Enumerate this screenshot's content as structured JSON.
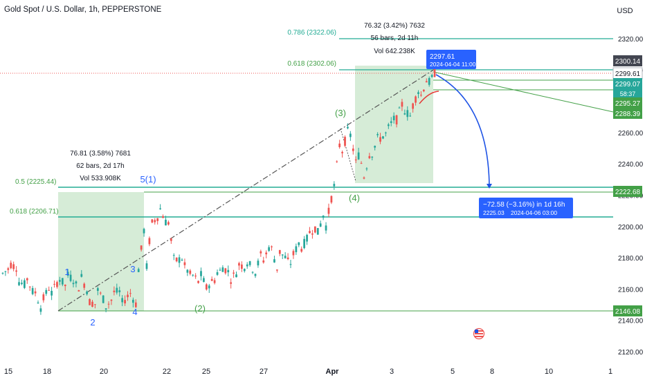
{
  "header": {
    "title": "Gold Spot / U.S. Dollar, 1h, PEPPERSTONE",
    "currency": "USD"
  },
  "chart_data": {
    "type": "candlestick",
    "symbol": "Gold Spot / U.S. Dollar",
    "interval": "1h",
    "source": "PEPPERSTONE",
    "currency": "USD",
    "ylim": [
      2110,
      2330
    ],
    "y_ticks": [
      2120,
      2140,
      2160,
      2180,
      2200,
      2220,
      2240,
      2260,
      2280,
      2300,
      2320
    ],
    "y_tick_labels": [
      "2120.00",
      "2140.00",
      "2160.00",
      "2180.00",
      "2200.00",
      "2220.00",
      "2240.00",
      "2260.00",
      "",
      "2300.00",
      "2320.00"
    ],
    "x_tick_labels": [
      "15",
      "18",
      "20",
      "22",
      "25",
      "27",
      "Apr",
      "3",
      "5",
      "8",
      "10",
      "1"
    ],
    "colors": {
      "up": "#26a69a",
      "down": "#ef5350",
      "fib": "#22ab94",
      "fib_text": "#43a047",
      "wave_blue": "#2962ff",
      "wave_green": "#43a047",
      "projection": "#1e53e5",
      "range_fill": "#c8e6c9"
    },
    "price_path": [
      [
        2170,
        2172
      ],
      [
        2176,
        2174
      ],
      [
        2165,
        2173
      ],
      [
        2168,
        2162
      ],
      [
        2160,
        2156
      ],
      [
        2152,
        2146
      ],
      [
        2155,
        2162
      ],
      [
        2168,
        2165
      ],
      [
        2170,
        2162
      ],
      [
        2164,
        2166
      ],
      [
        2168,
        2160
      ],
      [
        2152,
        2156
      ],
      [
        2160,
        2150
      ],
      [
        2148,
        2152
      ],
      [
        2158,
        2154
      ],
      [
        2150,
        2158
      ],
      [
        2160,
        2156
      ],
      [
        2162,
        2150
      ],
      [
        2158,
        2198
      ],
      [
        2202,
        2206
      ],
      [
        2212,
        2208
      ],
      [
        2206,
        2200
      ],
      [
        2178,
        2172
      ],
      [
        2176,
        2180
      ],
      [
        2170,
        2168
      ],
      [
        2172,
        2164
      ],
      [
        2162,
        2160
      ],
      [
        2170,
        2166
      ],
      [
        2174,
        2172
      ],
      [
        2166,
        2170
      ],
      [
        2176,
        2172
      ],
      [
        2178,
        2174
      ],
      [
        2168,
        2172
      ],
      [
        2176,
        2184
      ],
      [
        2190,
        2188
      ],
      [
        2185,
        2172
      ],
      [
        2178,
        2180
      ],
      [
        2182,
        2176
      ],
      [
        2186,
        2192
      ],
      [
        2196,
        2194
      ],
      [
        2194,
        2200
      ],
      [
        2196,
        2210
      ],
      [
        2218,
        2222
      ],
      [
        2244,
        2256
      ],
      [
        2265,
        2262
      ],
      [
        2250,
        2240
      ],
      [
        2232,
        2236
      ],
      [
        2246,
        2252
      ],
      [
        2256,
        2260
      ],
      [
        2262,
        2260
      ],
      [
        2266,
        2270
      ],
      [
        2275,
        2280
      ],
      [
        2274,
        2270
      ],
      [
        2280,
        2288
      ],
      [
        2290,
        2294
      ],
      [
        2298,
        2297
      ]
    ],
    "price_lines": [
      {
        "price": "2300.14",
        "tag": "",
        "color": "#434651",
        "style": "dark"
      },
      {
        "price": "2299.61",
        "tag": "",
        "color": "#ffffff",
        "style": "light"
      },
      {
        "price": "2299.07",
        "tag": "58:37",
        "color": "#26a69a",
        "style": "green"
      },
      {
        "price": "2295.27",
        "tag": "",
        "color": "#43a047",
        "style": "green"
      },
      {
        "price": "2288.39",
        "tag": "",
        "color": "#43a047",
        "style": "green"
      },
      {
        "price": "2222.68",
        "tag": "",
        "color": "#43a047",
        "style": "green"
      },
      {
        "price": "2146.08",
        "tag": "",
        "color": "#43a047",
        "style": "green"
      }
    ],
    "fib_levels": [
      {
        "label": "0.786 (2322.06)",
        "price": 2322.06
      },
      {
        "label": "0.618 (2302.06)",
        "price": 2302.06
      },
      {
        "label": "0.5 (2225.44)",
        "price": 2225.44
      },
      {
        "label": "0.618 (2206.71)",
        "price": 2206.71
      }
    ],
    "measurements": [
      {
        "line1": "76.81 (3.58%) 7681",
        "line2": "62 bars, 2d 17h",
        "line3": "Vol 533.908K"
      },
      {
        "line1": "76.32 (3.42%) 7632",
        "line2": "56 bars, 2d 11h",
        "line3": "Vol 642.238K"
      }
    ],
    "callouts": [
      {
        "price": "2297.61",
        "date": "2024-04-04 11:00"
      },
      {
        "main": "−72.58 (−3.16%) in 1d 16h",
        "price": "2225.03",
        "date": "2024-04-06  03:00"
      }
    ],
    "wave_labels": {
      "blue": [
        "1",
        "2",
        "3",
        "4",
        "5(1)"
      ],
      "green": [
        "(2)",
        "(3)",
        "(4)"
      ]
    }
  }
}
